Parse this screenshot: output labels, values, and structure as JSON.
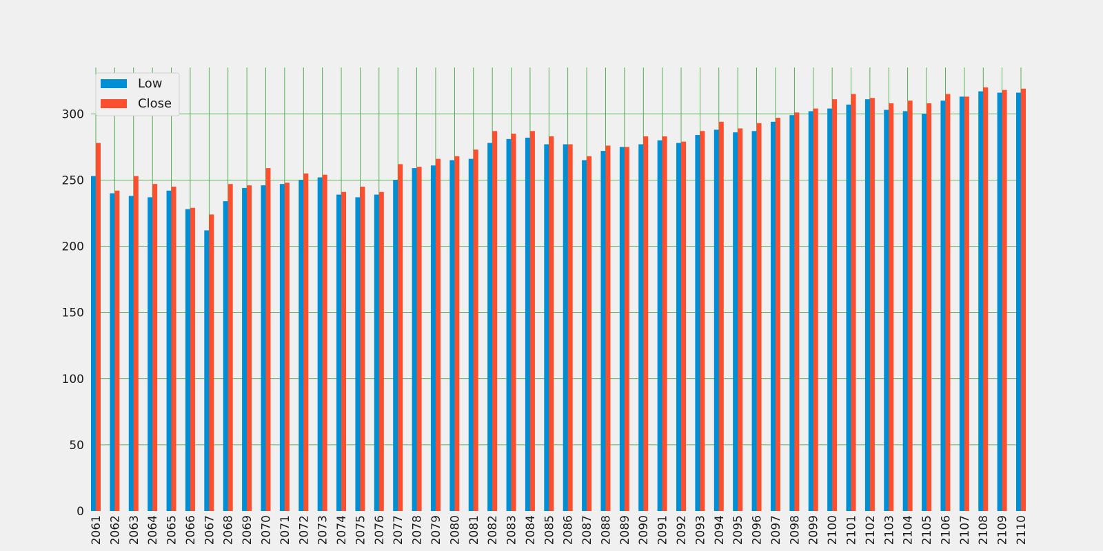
{
  "chart_data": {
    "type": "bar",
    "title": "",
    "xlabel": "",
    "ylabel": "",
    "ylim": [
      0,
      335
    ],
    "yticks": [
      0,
      50,
      100,
      150,
      200,
      250,
      300
    ],
    "grid": true,
    "legend_position": "top-left",
    "colors": {
      "background": "#f0f0f0",
      "grid": "#2ca02c",
      "Low": "#008fd5",
      "Close": "#fc4f30"
    },
    "categories": [
      "2061",
      "2062",
      "2063",
      "2064",
      "2065",
      "2066",
      "2067",
      "2068",
      "2069",
      "2070",
      "2071",
      "2072",
      "2073",
      "2074",
      "2075",
      "2076",
      "2077",
      "2078",
      "2079",
      "2080",
      "2081",
      "2082",
      "2083",
      "2084",
      "2085",
      "2086",
      "2087",
      "2088",
      "2089",
      "2090",
      "2091",
      "2092",
      "2093",
      "2094",
      "2095",
      "2096",
      "2097",
      "2098",
      "2099",
      "2100",
      "2101",
      "2102",
      "2103",
      "2104",
      "2105",
      "2106",
      "2107",
      "2108",
      "2109",
      "2110"
    ],
    "series": [
      {
        "name": "Low",
        "values": [
          253,
          240,
          238,
          237,
          242,
          228,
          212,
          234,
          244,
          246,
          247,
          250,
          252,
          239,
          237,
          239,
          250,
          259,
          261,
          265,
          266,
          278,
          281,
          282,
          277,
          277,
          265,
          272,
          275,
          277,
          280,
          278,
          284,
          288,
          286,
          287,
          294,
          299,
          302,
          304,
          307,
          311,
          303,
          302,
          300,
          310,
          313,
          317,
          316,
          316
        ]
      },
      {
        "name": "Close",
        "values": [
          278,
          242,
          253,
          247,
          245,
          229,
          224,
          247,
          246,
          259,
          248,
          255,
          254,
          241,
          245,
          241,
          262,
          260,
          266,
          268,
          273,
          287,
          285,
          287,
          283,
          277,
          268,
          276,
          275,
          283,
          283,
          279,
          287,
          294,
          289,
          293,
          297,
          301,
          304,
          311,
          315,
          312,
          308,
          310,
          308,
          315,
          313,
          320,
          318,
          319
        ]
      }
    ]
  }
}
